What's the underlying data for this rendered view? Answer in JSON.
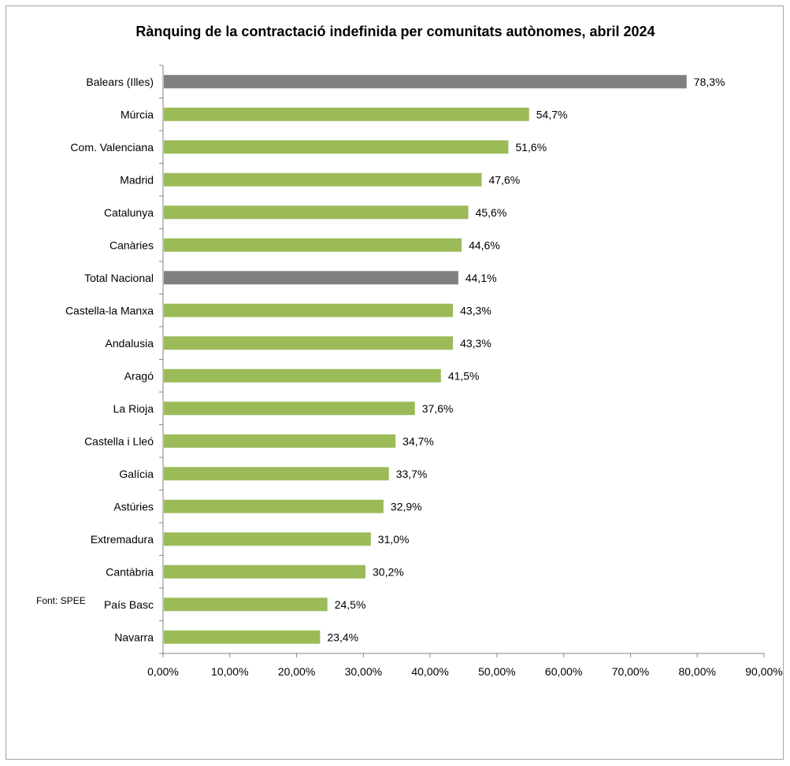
{
  "chart_data": {
    "type": "bar",
    "orientation": "horizontal",
    "title": "Rànquing de la contractació indefinida per comunitats autònomes, abril 2024",
    "source": "Font: SPEE",
    "xlim": [
      0,
      90
    ],
    "x_ticks": [
      "0,00%",
      "10,00%",
      "20,00%",
      "30,00%",
      "40,00%",
      "50,00%",
      "60,00%",
      "70,00%",
      "80,00%",
      "90,00%"
    ],
    "categories": [
      "Balears (Illes)",
      "Múrcia",
      "Com. Valenciana",
      "Madrid",
      "Catalunya",
      "Canàries",
      "Total Nacional",
      "Castella-la Manxa",
      "Andalusia",
      "Aragó",
      "La Rioja",
      "Castella i Lleó",
      "Galícia",
      "Astúries",
      "Extremadura",
      "Cantàbria",
      "País Basc",
      "Navarra"
    ],
    "values": [
      78.3,
      54.7,
      51.6,
      47.6,
      45.6,
      44.6,
      44.1,
      43.3,
      43.3,
      41.5,
      37.6,
      34.7,
      33.7,
      32.9,
      31.0,
      30.2,
      24.5,
      23.4
    ],
    "value_labels": [
      "78,3%",
      "54,7%",
      "51,6%",
      "47,6%",
      "45,6%",
      "44,6%",
      "44,1%",
      "43,3%",
      "43,3%",
      "41,5%",
      "37,6%",
      "34,7%",
      "33,7%",
      "32,9%",
      "31,0%",
      "30,2%",
      "24,5%",
      "23,4%"
    ],
    "highlighted": [
      "Balears (Illes)",
      "Total Nacional"
    ],
    "colors": {
      "default": "#9bbb59",
      "highlight": "#808080",
      "axis": "#868686"
    },
    "grid": false,
    "legend": "none"
  }
}
